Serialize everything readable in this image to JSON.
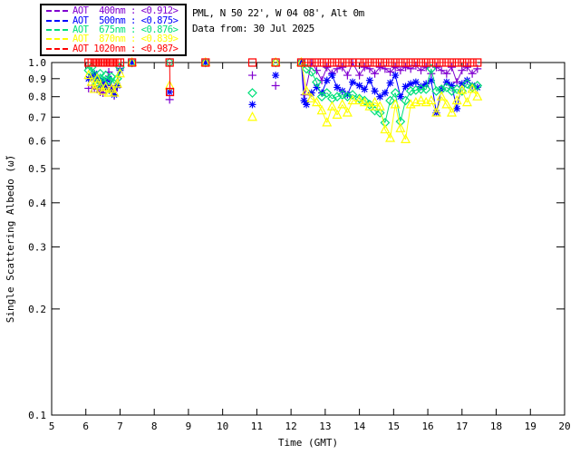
{
  "header": {
    "site_line": "PML, N 50 22', W 04 08', Alt 0m",
    "date_line": "Data from: 30 Jul 2025"
  },
  "legend": {
    "items": [
      {
        "label": "AOT  400nm : <0.912>",
        "mean": "<0.912>",
        "color": "#8000D0"
      },
      {
        "label": "AOT  500nm : <0.875>",
        "mean": "<0.875>",
        "color": "#0000FF"
      },
      {
        "label": "AOT  675nm : <0.876>",
        "mean": "<0.876>",
        "color": "#00E07A"
      },
      {
        "label": "AOT  870nm : <0.839>",
        "mean": "<0.839>",
        "color": "#FFFF00"
      },
      {
        "label": "AOT 1020nm : <0.987>",
        "mean": "<0.987>",
        "color": "#FF0000"
      }
    ]
  },
  "chart_data": {
    "type": "line",
    "title": "",
    "xlabel": "Time (GMT)",
    "ylabel": "Single Scattering Albedo (ω̃)",
    "xlim": [
      5,
      20
    ],
    "xticks": [
      5,
      6,
      7,
      8,
      9,
      10,
      11,
      12,
      13,
      14,
      15,
      16,
      17,
      18,
      19,
      20
    ],
    "yscale": "log",
    "ylim": [
      0.1,
      1.0
    ],
    "yticks": [
      1.0,
      0.9,
      0.8,
      0.7,
      0.6,
      0.5,
      0.4,
      0.3,
      0.2,
      0.1
    ],
    "ytick_labels": [
      "1.0",
      "0.9",
      "0.8",
      "0.7",
      "0.6",
      "0.5",
      "0.4",
      "0.3",
      "0.2",
      "0.1"
    ],
    "grid": false,
    "legend_position": "top-left-outside",
    "series": [
      {
        "name": "AOT 400nm",
        "color": "#8000D0",
        "marker": "plus",
        "points": [
          [
            6.08,
            0.845
          ],
          [
            6.17,
            0.845
          ],
          [
            6.25,
            0.845
          ],
          [
            6.33,
            0.84
          ],
          [
            6.42,
            0.825
          ],
          [
            6.5,
            0.82
          ],
          [
            6.58,
            0.87
          ],
          [
            6.67,
            0.94
          ],
          [
            6.75,
            0.86
          ],
          [
            6.83,
            0.805
          ],
          [
            6.92,
            0.85
          ],
          [
            7.0,
            0.96
          ],
          [
            7.35,
            1.0
          ],
          [
            8.45,
            0.785
          ],
          [
            9.5,
            1.0
          ],
          [
            10.87,
            0.92
          ],
          [
            11.55,
            0.86
          ],
          [
            12.3,
            1.0
          ],
          [
            12.4,
            0.81
          ],
          [
            12.6,
            1.0
          ],
          [
            12.75,
            0.95
          ],
          [
            12.9,
            0.89
          ],
          [
            13.05,
            0.97
          ],
          [
            13.2,
            0.93
          ],
          [
            13.35,
            0.96
          ],
          [
            13.5,
            0.97
          ],
          [
            13.65,
            0.92
          ],
          [
            13.8,
            1.0
          ],
          [
            14.0,
            0.92
          ],
          [
            14.15,
            0.97
          ],
          [
            14.3,
            0.96
          ],
          [
            14.45,
            0.93
          ],
          [
            14.6,
            0.97
          ],
          [
            14.75,
            0.96
          ],
          [
            14.9,
            0.94
          ],
          [
            15.05,
            0.97
          ],
          [
            15.2,
            0.95
          ],
          [
            15.35,
            0.97
          ],
          [
            15.5,
            0.96
          ],
          [
            15.65,
            0.98
          ],
          [
            15.8,
            0.95
          ],
          [
            15.95,
            0.97
          ],
          [
            16.1,
            0.93
          ],
          [
            16.25,
            0.97
          ],
          [
            16.4,
            0.95
          ],
          [
            16.55,
            0.93
          ],
          [
            16.7,
            0.97
          ],
          [
            16.85,
            0.88
          ],
          [
            17.0,
            0.95
          ],
          [
            17.15,
            0.97
          ],
          [
            17.3,
            0.93
          ],
          [
            17.45,
            0.96
          ]
        ]
      },
      {
        "name": "AOT 500nm",
        "color": "#0000FF",
        "marker": "asterisk",
        "points": [
          [
            6.08,
            0.9
          ],
          [
            6.17,
            0.91
          ],
          [
            6.25,
            0.93
          ],
          [
            6.33,
            0.9
          ],
          [
            6.42,
            0.86
          ],
          [
            6.5,
            0.89
          ],
          [
            6.58,
            0.85
          ],
          [
            6.67,
            0.9
          ],
          [
            6.75,
            0.83
          ],
          [
            6.83,
            0.81
          ],
          [
            6.92,
            0.86
          ],
          [
            7.0,
            0.95
          ],
          [
            7.35,
            1.0
          ],
          [
            8.45,
            0.825
          ],
          [
            9.5,
            1.0
          ],
          [
            10.87,
            0.76
          ],
          [
            11.55,
            0.92
          ],
          [
            12.3,
            1.0
          ],
          [
            12.38,
            0.78
          ],
          [
            12.45,
            0.76
          ],
          [
            12.6,
            0.82
          ],
          [
            12.75,
            0.85
          ],
          [
            12.9,
            0.82
          ],
          [
            13.05,
            0.89
          ],
          [
            13.2,
            0.92
          ],
          [
            13.35,
            0.85
          ],
          [
            13.5,
            0.83
          ],
          [
            13.65,
            0.81
          ],
          [
            13.8,
            0.88
          ],
          [
            14.0,
            0.86
          ],
          [
            14.15,
            0.84
          ],
          [
            14.3,
            0.89
          ],
          [
            14.45,
            0.83
          ],
          [
            14.6,
            0.8
          ],
          [
            14.75,
            0.82
          ],
          [
            14.9,
            0.875
          ],
          [
            15.05,
            0.92
          ],
          [
            15.2,
            0.8
          ],
          [
            15.35,
            0.855
          ],
          [
            15.5,
            0.87
          ],
          [
            15.65,
            0.88
          ],
          [
            15.8,
            0.855
          ],
          [
            15.95,
            0.87
          ],
          [
            16.1,
            0.89
          ],
          [
            16.25,
            0.72
          ],
          [
            16.4,
            0.84
          ],
          [
            16.55,
            0.88
          ],
          [
            16.7,
            0.86
          ],
          [
            16.85,
            0.74
          ],
          [
            17.0,
            0.87
          ],
          [
            17.15,
            0.89
          ],
          [
            17.3,
            0.86
          ],
          [
            17.45,
            0.85
          ]
        ]
      },
      {
        "name": "AOT 675nm",
        "color": "#00E07A",
        "marker": "diamond",
        "points": [
          [
            6.08,
            0.95
          ],
          [
            6.17,
            0.97
          ],
          [
            6.25,
            0.92
          ],
          [
            6.33,
            0.87
          ],
          [
            6.42,
            0.93
          ],
          [
            6.5,
            0.88
          ],
          [
            6.58,
            0.92
          ],
          [
            6.67,
            0.89
          ],
          [
            6.75,
            0.91
          ],
          [
            6.83,
            0.87
          ],
          [
            6.92,
            0.9
          ],
          [
            7.0,
            0.97
          ],
          [
            7.35,
            1.0
          ],
          [
            8.45,
            1.0
          ],
          [
            9.5,
            1.0
          ],
          [
            10.87,
            0.82
          ],
          [
            11.55,
            1.0
          ],
          [
            12.3,
            1.0
          ],
          [
            12.45,
            0.96
          ],
          [
            12.6,
            0.94
          ],
          [
            12.75,
            0.88
          ],
          [
            12.9,
            0.8
          ],
          [
            13.05,
            0.82
          ],
          [
            13.2,
            0.79
          ],
          [
            13.35,
            0.8
          ],
          [
            13.5,
            0.81
          ],
          [
            13.65,
            0.8
          ],
          [
            13.8,
            0.81
          ],
          [
            14.0,
            0.79
          ],
          [
            14.15,
            0.78
          ],
          [
            14.3,
            0.76
          ],
          [
            14.45,
            0.73
          ],
          [
            14.6,
            0.72
          ],
          [
            14.75,
            0.675
          ],
          [
            14.9,
            0.78
          ],
          [
            15.05,
            0.82
          ],
          [
            15.2,
            0.68
          ],
          [
            15.35,
            0.78
          ],
          [
            15.5,
            0.83
          ],
          [
            15.65,
            0.835
          ],
          [
            15.8,
            0.84
          ],
          [
            15.95,
            0.84
          ],
          [
            16.1,
            0.96
          ],
          [
            16.25,
            0.83
          ],
          [
            16.4,
            0.84
          ],
          [
            16.55,
            0.85
          ],
          [
            16.7,
            0.83
          ],
          [
            16.85,
            0.84
          ],
          [
            17.0,
            0.83
          ],
          [
            17.15,
            0.87
          ],
          [
            17.3,
            0.85
          ],
          [
            17.45,
            0.86
          ]
        ]
      },
      {
        "name": "AOT 870nm",
        "color": "#FFFF00",
        "marker": "triangle",
        "points": [
          [
            6.08,
            0.92
          ],
          [
            6.17,
            0.88
          ],
          [
            6.25,
            0.84
          ],
          [
            6.33,
            0.9
          ],
          [
            6.42,
            0.86
          ],
          [
            6.5,
            0.83
          ],
          [
            6.58,
            0.85
          ],
          [
            6.67,
            0.82
          ],
          [
            6.75,
            0.84
          ],
          [
            6.83,
            0.82
          ],
          [
            6.92,
            0.87
          ],
          [
            7.0,
            0.93
          ],
          [
            7.35,
            1.0
          ],
          [
            8.45,
            0.86
          ],
          [
            9.5,
            1.0
          ],
          [
            10.87,
            0.7
          ],
          [
            11.55,
            1.0
          ],
          [
            12.3,
            1.0
          ],
          [
            12.45,
            0.83
          ],
          [
            12.6,
            0.79
          ],
          [
            12.75,
            0.77
          ],
          [
            12.9,
            0.73
          ],
          [
            13.05,
            0.675
          ],
          [
            13.2,
            0.75
          ],
          [
            13.35,
            0.71
          ],
          [
            13.5,
            0.76
          ],
          [
            13.65,
            0.72
          ],
          [
            13.8,
            0.78
          ],
          [
            14.0,
            0.78
          ],
          [
            14.15,
            0.77
          ],
          [
            14.3,
            0.75
          ],
          [
            14.45,
            0.77
          ],
          [
            14.6,
            0.75
          ],
          [
            14.75,
            0.645
          ],
          [
            14.9,
            0.61
          ],
          [
            15.05,
            0.76
          ],
          [
            15.2,
            0.65
          ],
          [
            15.35,
            0.605
          ],
          [
            15.5,
            0.76
          ],
          [
            15.65,
            0.77
          ],
          [
            15.8,
            0.78
          ],
          [
            15.95,
            0.77
          ],
          [
            16.1,
            0.78
          ],
          [
            16.25,
            0.72
          ],
          [
            16.4,
            0.8
          ],
          [
            16.55,
            0.76
          ],
          [
            16.7,
            0.72
          ],
          [
            16.85,
            0.78
          ],
          [
            17.0,
            0.835
          ],
          [
            17.15,
            0.77
          ],
          [
            17.3,
            0.84
          ],
          [
            17.45,
            0.8
          ]
        ]
      },
      {
        "name": "AOT 1020nm",
        "color": "#FF0000",
        "marker": "square",
        "points": [
          [
            6.08,
            1.0
          ],
          [
            6.17,
            1.0
          ],
          [
            6.25,
            1.0
          ],
          [
            6.33,
            1.0
          ],
          [
            6.42,
            1.0
          ],
          [
            6.5,
            1.0
          ],
          [
            6.58,
            1.0
          ],
          [
            6.67,
            1.0
          ],
          [
            6.75,
            1.0
          ],
          [
            6.83,
            1.0
          ],
          [
            6.92,
            1.0
          ],
          [
            7.0,
            1.0
          ],
          [
            7.35,
            1.0
          ],
          [
            8.45,
            1.0
          ],
          [
            8.46,
            0.825
          ],
          [
            9.5,
            1.0
          ],
          [
            10.87,
            1.0
          ],
          [
            11.55,
            1.0
          ],
          [
            12.3,
            1.0
          ],
          [
            12.45,
            1.0
          ],
          [
            12.6,
            1.0
          ],
          [
            12.75,
            1.0
          ],
          [
            12.9,
            1.0
          ],
          [
            13.05,
            1.0
          ],
          [
            13.2,
            1.0
          ],
          [
            13.35,
            1.0
          ],
          [
            13.5,
            1.0
          ],
          [
            13.65,
            1.0
          ],
          [
            13.8,
            1.0
          ],
          [
            14.0,
            1.0
          ],
          [
            14.15,
            1.0
          ],
          [
            14.3,
            1.0
          ],
          [
            14.45,
            1.0
          ],
          [
            14.6,
            1.0
          ],
          [
            14.75,
            1.0
          ],
          [
            14.9,
            1.0
          ],
          [
            15.05,
            1.0
          ],
          [
            15.2,
            1.0
          ],
          [
            15.35,
            1.0
          ],
          [
            15.5,
            1.0
          ],
          [
            15.65,
            1.0
          ],
          [
            15.8,
            1.0
          ],
          [
            15.95,
            1.0
          ],
          [
            16.1,
            1.0
          ],
          [
            16.25,
            1.0
          ],
          [
            16.4,
            1.0
          ],
          [
            16.55,
            1.0
          ],
          [
            16.7,
            1.0
          ],
          [
            16.85,
            1.0
          ],
          [
            17.0,
            1.0
          ],
          [
            17.15,
            1.0
          ],
          [
            17.3,
            1.0
          ],
          [
            17.45,
            1.0
          ]
        ]
      }
    ]
  }
}
